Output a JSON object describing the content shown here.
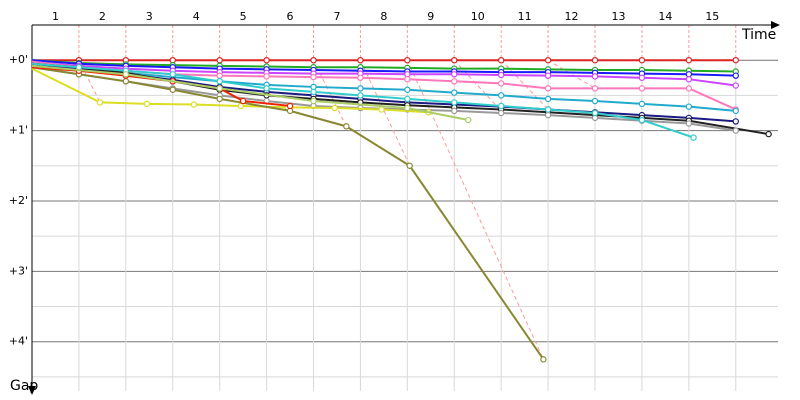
{
  "chart_data": {
    "type": "line",
    "x_label": "Time",
    "y_label": "Gap",
    "xlim": [
      0,
      15.9
    ],
    "xticks": [
      1,
      2,
      3,
      4,
      5,
      6,
      7,
      8,
      9,
      10,
      11,
      12,
      13,
      14,
      15
    ],
    "ylim": [
      -0.5,
      4.7
    ],
    "y_inverted": true,
    "yticks": [
      {
        "value": 0,
        "label": "+0'"
      },
      {
        "value": 1,
        "label": "+1'"
      },
      {
        "value": 2,
        "label": "+2'"
      },
      {
        "value": 3,
        "label": "+3'"
      },
      {
        "value": 4,
        "label": "+4'"
      }
    ],
    "yminor": [
      0.5,
      1.5,
      2.5,
      3.5,
      4.5
    ],
    "grid": true,
    "series": [
      {
        "color": "#dd2222",
        "x": [
          0,
          1,
          2,
          3,
          4,
          5,
          6,
          7,
          8,
          9,
          10,
          11,
          12,
          13,
          14,
          15
        ],
        "values": [
          0,
          0,
          0,
          0,
          0,
          0,
          0,
          0,
          0,
          0,
          0,
          0,
          0,
          0,
          0,
          0
        ]
      },
      {
        "color": "#22aa22",
        "x": [
          0,
          1,
          2,
          3,
          4,
          5,
          6,
          7,
          8,
          9,
          10,
          11,
          12,
          13,
          14,
          15
        ],
        "values": [
          0,
          0.04,
          0.06,
          0.07,
          0.08,
          0.09,
          0.1,
          0.1,
          0.11,
          0.12,
          0.12,
          0.13,
          0.14,
          0.14,
          0.15,
          0.16
        ]
      },
      {
        "color": "#1a1aff",
        "x": [
          0,
          1,
          2,
          3,
          4,
          5,
          6,
          7,
          8,
          9,
          10,
          11,
          12,
          13,
          14,
          15
        ],
        "values": [
          0,
          0.05,
          0.08,
          0.1,
          0.12,
          0.13,
          0.14,
          0.15,
          0.16,
          0.16,
          0.17,
          0.17,
          0.18,
          0.19,
          0.2,
          0.22
        ]
      },
      {
        "color": "#cc44ff",
        "x": [
          0,
          1,
          2,
          3,
          4,
          5,
          6,
          7,
          8,
          9,
          10,
          11,
          12,
          13,
          14,
          15
        ],
        "values": [
          0.03,
          0.08,
          0.12,
          0.15,
          0.17,
          0.18,
          0.19,
          0.19,
          0.2,
          0.2,
          0.21,
          0.22,
          0.23,
          0.25,
          0.27,
          0.36
        ]
      },
      {
        "color": "#ff77bb",
        "x": [
          0,
          1,
          2,
          3,
          4,
          5,
          6,
          7,
          8,
          9,
          10,
          11,
          12,
          13,
          14,
          15
        ],
        "values": [
          0.02,
          0.1,
          0.15,
          0.2,
          0.22,
          0.23,
          0.24,
          0.25,
          0.27,
          0.3,
          0.33,
          0.4,
          0.4,
          0.4,
          0.4,
          0.7
        ]
      },
      {
        "color": "#22aacc",
        "x": [
          0,
          1,
          2,
          3,
          4,
          5,
          6,
          7,
          8,
          9,
          10,
          11,
          12,
          13,
          14,
          15
        ],
        "values": [
          0.05,
          0.12,
          0.18,
          0.24,
          0.3,
          0.35,
          0.38,
          0.4,
          0.42,
          0.46,
          0.5,
          0.55,
          0.58,
          0.62,
          0.66,
          0.72
        ]
      },
      {
        "color": "#1a1a80",
        "x": [
          0,
          1,
          2,
          3,
          4,
          5,
          6,
          7,
          8,
          9,
          10,
          11,
          12,
          13,
          14,
          15
        ],
        "values": [
          0.05,
          0.12,
          0.2,
          0.28,
          0.38,
          0.45,
          0.5,
          0.55,
          0.6,
          0.63,
          0.66,
          0.7,
          0.74,
          0.78,
          0.82,
          0.87
        ]
      },
      {
        "color": "#222222",
        "x": [
          0,
          1,
          2,
          3,
          4,
          5,
          6,
          7,
          8,
          9,
          10,
          11,
          12,
          13,
          14,
          15.7
        ],
        "values": [
          0.05,
          0.1,
          0.18,
          0.3,
          0.42,
          0.5,
          0.55,
          0.6,
          0.64,
          0.67,
          0.7,
          0.74,
          0.78,
          0.82,
          0.86,
          1.05
        ]
      },
      {
        "color": "#999999",
        "x": [
          0,
          1,
          2,
          3,
          4,
          5,
          6,
          7,
          8,
          9,
          10,
          11,
          12,
          13,
          14,
          15
        ],
        "values": [
          0.1,
          0.2,
          0.3,
          0.4,
          0.5,
          0.58,
          0.65,
          0.68,
          0.7,
          0.72,
          0.75,
          0.78,
          0.82,
          0.86,
          0.9,
          1.0
        ]
      },
      {
        "color": "#dddd22",
        "x": [
          0,
          1.45,
          2.45,
          3.45,
          4.45,
          5.45,
          6.45,
          7.45,
          8.45
        ],
        "values": [
          0.12,
          0.6,
          0.62,
          0.63,
          0.65,
          0.67,
          0.68,
          0.7,
          0.74
        ]
      },
      {
        "color": "#888833",
        "x": [
          0,
          1,
          2,
          3,
          4,
          5.5,
          6.7,
          8.05,
          10.9
        ],
        "values": [
          0.1,
          0.2,
          0.3,
          0.42,
          0.55,
          0.72,
          0.94,
          1.5,
          4.25
        ]
      },
      {
        "color": "#ee2200",
        "x": [
          0,
          1,
          2,
          3,
          4,
          4.5,
          5.5
        ],
        "values": [
          0.1,
          0.15,
          0.22,
          0.3,
          0.4,
          0.58,
          0.65
        ]
      },
      {
        "color": "#33cccc",
        "x": [
          0,
          1,
          2,
          3,
          4,
          5,
          6,
          7,
          8,
          9,
          10,
          11,
          12,
          13,
          14.1
        ],
        "values": [
          0.05,
          0.1,
          0.15,
          0.2,
          0.3,
          0.4,
          0.45,
          0.5,
          0.55,
          0.6,
          0.65,
          0.7,
          0.75,
          0.85,
          1.1
        ]
      },
      {
        "color": "#aacc66",
        "x": [
          0,
          2,
          4,
          6,
          8,
          9.3
        ],
        "values": [
          0.08,
          0.2,
          0.4,
          0.58,
          0.68,
          0.85
        ]
      }
    ],
    "pit_lines": [
      {
        "x": [
          1,
          1.45
        ],
        "values": [
          0,
          0.6
        ]
      },
      {
        "x": [
          6,
          6.7
        ],
        "values": [
          0,
          0.94
        ]
      },
      {
        "x": [
          7,
          8.05
        ],
        "values": [
          0,
          1.5
        ]
      },
      {
        "x": [
          8,
          10.9
        ],
        "values": [
          0,
          4.25
        ]
      },
      {
        "x": [
          9,
          10
        ],
        "values": [
          0,
          0.72
        ]
      },
      {
        "x": [
          10,
          11
        ],
        "values": [
          0,
          0.7
        ]
      },
      {
        "x": [
          11,
          12
        ],
        "values": [
          0,
          0.4
        ]
      }
    ]
  }
}
